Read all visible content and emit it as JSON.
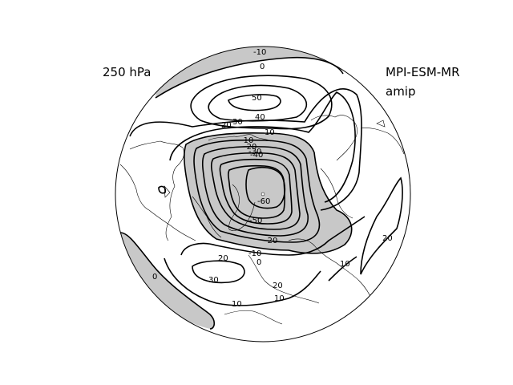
{
  "header": {
    "pressure_level": "250 hPa",
    "model": "MPI-ESM-MR",
    "experiment": "amip"
  },
  "map": {
    "projection": "north-polar-stereographic",
    "shading_color": "#c8c8c8",
    "line_color": "#000000",
    "contour_labels": [
      "-10",
      "0",
      "50",
      "40",
      "30",
      "20",
      "10",
      "-10",
      "-20",
      "-30",
      "-40",
      "-60",
      "-50",
      "-20",
      "-10",
      "0",
      "20",
      "30",
      "10",
      "20",
      "10",
      "10",
      "0",
      "20"
    ]
  }
}
